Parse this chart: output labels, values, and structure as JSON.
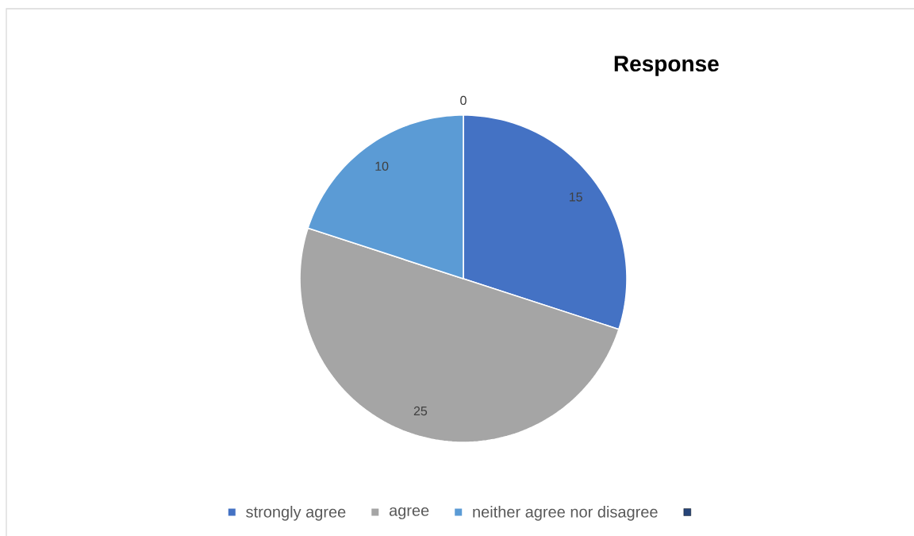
{
  "chart_data": {
    "type": "pie",
    "title": "Response",
    "categories": [
      "strongly agree",
      "agree",
      "neither agree nor disagree",
      null
    ],
    "values": [
      15,
      25,
      10,
      0
    ],
    "value_labels": [
      "15",
      "25",
      "10",
      "0"
    ],
    "colors": [
      "#4472c4",
      "#a5a5a5",
      "#5b9bd5",
      "#264478"
    ],
    "legend": "bottom"
  }
}
